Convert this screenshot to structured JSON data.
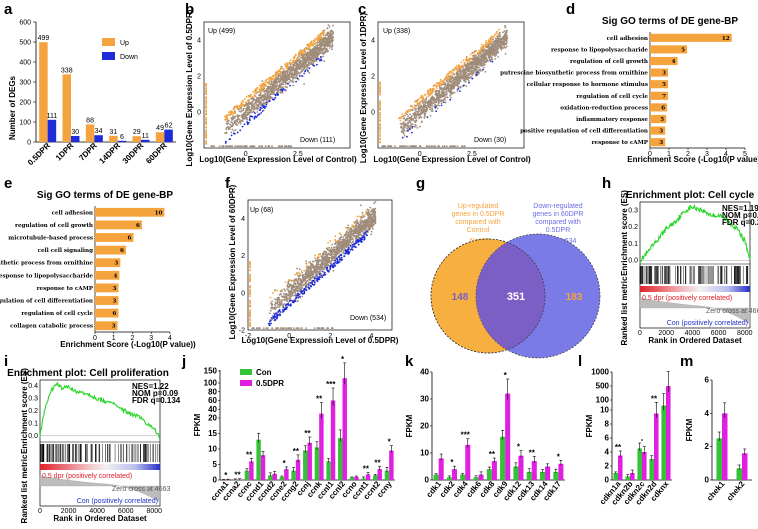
{
  "colors": {
    "up": "#F5A33C",
    "down": "#1E2BD8",
    "grey": "#A08C7A",
    "green": "#35C236",
    "magenta": "#E020E0",
    "vennLeft": "#F7B040",
    "vennRight": "#7B7BE8",
    "vennOverlap": "#7C5FC4",
    "gsea": "#28D628"
  },
  "panels": {
    "a": {
      "label": "a",
      "chart_data": {
        "type": "bar",
        "categories": [
          "0.5DPR",
          "1DPR",
          "7DPR",
          "14DPR",
          "30DPR",
          "60DPR"
        ],
        "series": [
          {
            "name": "Up",
            "values": [
              499,
              338,
              88,
              31,
              29,
              49
            ]
          },
          {
            "name": "Down",
            "values": [
              111,
              30,
              34,
              6,
              11,
              62
            ]
          }
        ],
        "ylabel": "Number of DEGs",
        "ylim": [
          0,
          600
        ],
        "yticks": [
          0,
          100,
          200,
          300,
          400,
          500,
          600
        ],
        "data_labels": [
          [
            "499",
            "338",
            "88",
            "31",
            "29",
            "49"
          ],
          [
            "111",
            "30",
            "34",
            "6",
            "11",
            "62"
          ]
        ]
      }
    },
    "b": {
      "label": "b",
      "chart_data": {
        "type": "scatter",
        "xlabel": "Log10(Gene Expression Level of Control)",
        "ylabel": "Log10(Gene Expression Level of 0.5DPR)",
        "up_label": "Up (499)",
        "down_label": "Down (111)",
        "xticks": [
          "0",
          "2.5"
        ],
        "yticks": [
          "0",
          "2",
          "4"
        ],
        "xlim": [
          -2,
          5
        ],
        "ylim": [
          -2,
          5
        ]
      }
    },
    "c": {
      "label": "c",
      "chart_data": {
        "type": "scatter",
        "xlabel": "Log10(Gene Expression Level of Control)",
        "ylabel": "Log10(Gene Expression Level of 1DPR)",
        "up_label": "Up (338)",
        "down_label": "Down (30)",
        "xticks": [
          "0",
          "2.5"
        ],
        "yticks": [
          "0",
          "2",
          "4"
        ],
        "xlim": [
          -2,
          5
        ],
        "ylim": [
          -2,
          5
        ]
      }
    },
    "d": {
      "label": "d",
      "chart_data": {
        "type": "bar",
        "title": "Sig GO terms of DE gene-BP",
        "categories": [
          "cell adhesion",
          "response to lipopolysaccharide",
          "regulation of cell growth",
          "putrescine biosynthetic process from ornithine",
          "cellular response to hormone stimulus",
          "regulation of cell cycle",
          "oxidation-reduction process",
          "inflammatory response",
          "positive regulation of cell differentiation",
          "response to cAMP"
        ],
        "values": [
          4.3,
          1.95,
          1.45,
          0.95,
          0.95,
          0.95,
          0.9,
          0.85,
          0.8,
          0.8
        ],
        "bar_labels": [
          "12",
          "5",
          "4",
          "3",
          "5",
          "7",
          "6",
          "5",
          "3",
          "3"
        ],
        "xlabel": "Enrichment Score (-Log10(P value))",
        "xlim": [
          0,
          5
        ],
        "xticks": [
          0,
          1,
          2,
          3,
          4,
          5
        ]
      }
    },
    "e": {
      "label": "e",
      "chart_data": {
        "type": "bar",
        "title": "Sig GO terms of DE gene-BP",
        "categories": [
          "cell adhesion",
          "regulation of cell growth",
          "microtubule-based process",
          "cell cell signaling",
          "putrescine biosynthetic process from ornithine",
          "response to lipopolysaccharide",
          "response to cAMP",
          "positive regulation of cell differentiation",
          "regulation of cell cycle",
          "collagen catabolic process"
        ],
        "values": [
          3.7,
          2.5,
          2.05,
          1.65,
          1.35,
          1.3,
          1.25,
          1.25,
          1.25,
          1.2
        ],
        "bar_labels": [
          "10",
          "6",
          "6",
          "6",
          "3",
          "4",
          "3",
          "3",
          "6",
          "3"
        ],
        "xlabel": "Enrichment Score (-Log10(P value))",
        "xlim": [
          0,
          4
        ],
        "xticks": [
          0,
          1,
          2,
          3,
          4
        ]
      }
    },
    "f": {
      "label": "f",
      "chart_data": {
        "type": "scatter",
        "xlabel": "Log10(Gene Expression Level of 0.5DPR)",
        "ylabel": "Log10(Gene Expression Level of 60DPR)",
        "up_label": "Up (68)",
        "down_label": "Down (534)",
        "xticks": [
          "-2",
          "0",
          "2",
          "4"
        ],
        "yticks": [
          "-2",
          "0",
          "2",
          "4"
        ],
        "xlim": [
          -2,
          5
        ],
        "ylim": [
          -2,
          5
        ]
      }
    },
    "g": {
      "label": "g",
      "left_text": [
        "Up-regulated",
        "genes in 0.5DPR",
        "compared with",
        "Control"
      ],
      "left_n": "N=499",
      "right_text": [
        "Down-regulated",
        "genes in 60DPR",
        "compared with",
        "0.5DPR"
      ],
      "right_n": "N=534",
      "left_only": "148",
      "overlap": "351",
      "right_only": "183"
    },
    "h": {
      "label": "h",
      "title": "Enrichment plot: Cell cycle",
      "stats": [
        "NES=1.19",
        "NOM p=0.196",
        "FDR q=0.226"
      ],
      "ylabel_top": "Enrichment score (ES)",
      "ylabel_bottom": "Ranked list metric",
      "pos_label": "0.5 dpr (positively correlated)",
      "neg_label": "Con (positively correlated)",
      "zero_label": "Zero cross at 4663",
      "xlabel": "Rank in Ordered Dataset",
      "xticks": [
        "0",
        "2000",
        "4000",
        "6000",
        "8000"
      ],
      "yticks_top": [
        "0.0",
        "0.1",
        "0.2",
        "0.3"
      ],
      "chart_data": {
        "type": "line",
        "x": [
          0,
          500,
          1000,
          1500,
          2000,
          2500,
          3000,
          3500,
          4000,
          4500,
          5000,
          5500,
          6000,
          6500,
          7000,
          7500,
          8000,
          8400
        ],
        "y": [
          0,
          0.04,
          0.09,
          0.14,
          0.19,
          0.22,
          0.26,
          0.3,
          0.32,
          0.31,
          0.29,
          0.27,
          0.27,
          0.25,
          0.22,
          0.18,
          0.12,
          0.01
        ]
      }
    },
    "i": {
      "label": "i",
      "title": "Enrichment plot: Cell proliferation",
      "stats": [
        "NES=1.22",
        "NOM p=0.09",
        "FDR q=0.134"
      ],
      "ylabel_top": "Enrichment score (ES)",
      "ylabel_bottom": "Ranked list metric",
      "pos_label": "0.5 dpr (positively correlated)",
      "neg_label": "Con (positively correlated)",
      "zero_label": "Zero cross at 4663",
      "xlabel": "Rank in Ordered Dataset",
      "xticks": [
        "0",
        "2000",
        "4000",
        "6000",
        "8000"
      ],
      "yticks_top": [
        "0.0",
        "0.1",
        "0.2",
        "0.3",
        "0.4"
      ],
      "chart_data": {
        "type": "line",
        "x": [
          0,
          300,
          800,
          1200,
          1600,
          2000,
          2500,
          3000,
          3500,
          4000,
          4500,
          5000,
          5500,
          6000,
          6500,
          7000,
          7500,
          8000,
          8400
        ],
        "y": [
          0,
          0.2,
          0.37,
          0.42,
          0.38,
          0.4,
          0.36,
          0.35,
          0.33,
          0.3,
          0.28,
          0.27,
          0.22,
          0.2,
          0.17,
          0.15,
          0.1,
          0.06,
          -0.02
        ]
      }
    },
    "j": {
      "label": "j",
      "legend": [
        "Con",
        "0.5DPR"
      ],
      "ylabel": "FPKM",
      "chart_data": {
        "type": "bar",
        "categories": [
          "ccna1",
          "ccna2",
          "ccnc",
          "ccnd1",
          "ccnd2",
          "ccne2",
          "ccng2",
          "ccnj",
          "ccnk",
          "ccnl1",
          "ccnl2",
          "ccno",
          "ccnt1",
          "ccnt2",
          "ccny"
        ],
        "series": [
          {
            "name": "Con",
            "values": [
              0.2,
              0.1,
              3,
              13,
              1.5,
              1,
              3,
              9.5,
              10.5,
              6,
              13.5,
              0.8,
              0.5,
              1.5,
              3
            ]
          },
          {
            "name": "0.5DPR",
            "values": [
              0.1,
              0.2,
              6,
              8,
              2,
              3.5,
              6.5,
              12,
              30,
              60,
              120,
              1,
              1.8,
              3.5,
              9.5
            ]
          }
        ],
        "yticks": [
          "0",
          "5",
          "10",
          "15",
          "20",
          "40",
          "60",
          "80",
          "100",
          "150"
        ],
        "sig": [
          "*",
          "**",
          "**",
          "",
          "",
          "*",
          "**",
          "**",
          "**",
          "***",
          "*",
          "",
          "**",
          "**",
          "*"
        ]
      }
    },
    "k": {
      "label": "k",
      "ylabel": "FPKM",
      "chart_data": {
        "type": "bar",
        "categories": [
          "cdk1",
          "cdk2",
          "cdk4",
          "cdk6",
          "cdk8",
          "cdk9",
          "cdk12",
          "cdk13",
          "cdk14",
          "cdk17"
        ],
        "series": [
          {
            "name": "Con",
            "values": [
              2,
              1,
              2,
              1,
              4,
              16,
              5,
              3,
              3,
              3
            ]
          },
          {
            "name": "0.5DPR",
            "values": [
              8,
              4,
              13,
              2,
              7,
              32,
              9,
              7,
              5,
              6
            ]
          }
        ],
        "yticks": [
          "0",
          "10",
          "20",
          "30",
          "40"
        ],
        "sig": [
          "",
          "*",
          "***",
          "",
          "**",
          "*",
          "*",
          "**",
          "",
          "*"
        ]
      }
    },
    "l": {
      "label": "l",
      "ylabel": "FPKM",
      "chart_data": {
        "type": "bar",
        "categories": [
          "cdkn1a",
          "cdkn2b",
          "cdkn2c",
          "cdkn2d",
          "cdknx"
        ],
        "series": [
          {
            "name": "Con",
            "values": [
              1,
              0.5,
              4.5,
              3,
              50
            ]
          },
          {
            "name": "0.5DPR",
            "values": [
              3.5,
              1,
              4,
              9.5,
              500
            ]
          }
        ],
        "yticks": [
          "0",
          "2",
          "4",
          "6",
          "8",
          "10",
          "100",
          "500",
          "1000"
        ],
        "sig": [
          "**",
          "",
          "-",
          "**",
          ""
        ]
      }
    },
    "m": {
      "label": "m",
      "ylabel": "FPKM",
      "chart_data": {
        "type": "bar",
        "categories": [
          "chek1",
          "chek2"
        ],
        "series": [
          {
            "name": "Con",
            "values": [
              2.5,
              0.7
            ]
          },
          {
            "name": "0.5DPR",
            "values": [
              4,
              1.6
            ]
          }
        ],
        "yticks": [
          "0",
          "2",
          "4",
          "6"
        ]
      }
    }
  }
}
